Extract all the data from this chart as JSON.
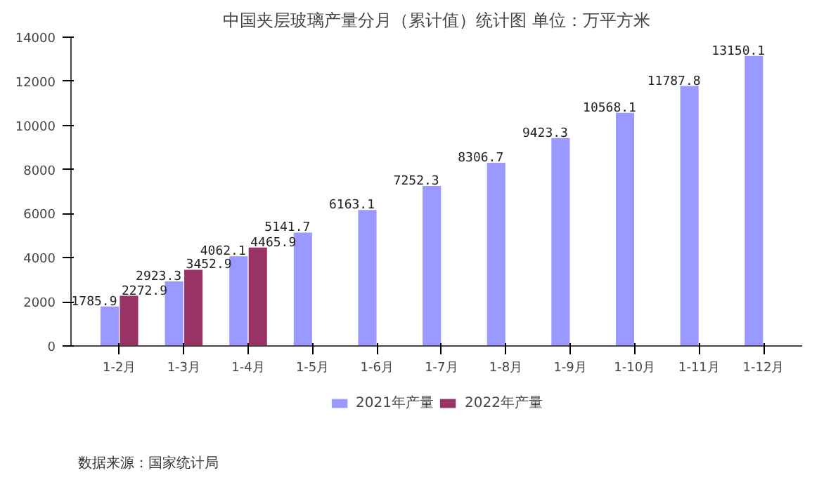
{
  "chart_data": {
    "type": "bar",
    "title": "中国夹层玻璃产量分月（累计值）统计图 单位：万平方米",
    "categories": [
      "1-2月",
      "1-3月",
      "1-4月",
      "1-5月",
      "1-6月",
      "1-7月",
      "1-8月",
      "1-9月",
      "1-10月",
      "1-11月",
      "1-12月"
    ],
    "series": [
      {
        "name": "2021年产量",
        "color": "#9999ff",
        "values": [
          1785.9,
          2923.3,
          4062.1,
          5141.7,
          6163.1,
          7252.3,
          8306.7,
          9423.3,
          10568.1,
          11787.8,
          13150.1
        ]
      },
      {
        "name": "2022年产量",
        "color": "#993366",
        "values": [
          2272.9,
          3452.9,
          4465.9,
          null,
          null,
          null,
          null,
          null,
          null,
          null,
          null
        ]
      }
    ],
    "ylim": [
      0,
      14000
    ],
    "yticks": [
      0,
      2000,
      4000,
      6000,
      8000,
      10000,
      12000,
      14000
    ],
    "data_labels": true,
    "legend": "bottom",
    "grid": false,
    "annotations": [
      "数据来源：国家统计局"
    ]
  }
}
